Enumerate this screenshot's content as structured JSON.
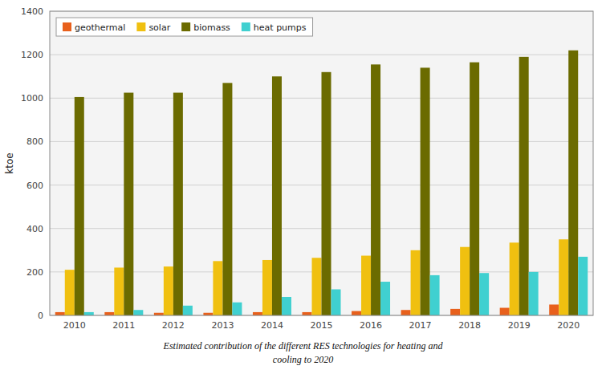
{
  "chart_data": {
    "type": "bar",
    "categories": [
      "2010",
      "2011",
      "2012",
      "2013",
      "2014",
      "2015",
      "2016",
      "2017",
      "2018",
      "2019",
      "2020"
    ],
    "series": [
      {
        "name": "geothermal",
        "color": "#e8601c",
        "values": [
          15,
          15,
          12,
          12,
          15,
          15,
          20,
          25,
          30,
          35,
          50
        ]
      },
      {
        "name": "solar",
        "color": "#f0c010",
        "values": [
          210,
          220,
          225,
          250,
          255,
          265,
          275,
          300,
          315,
          335,
          350
        ]
      },
      {
        "name": "biomass",
        "color": "#6b6b00",
        "values": [
          1005,
          1025,
          1025,
          1070,
          1100,
          1120,
          1155,
          1140,
          1165,
          1190,
          1220
        ]
      },
      {
        "name": "heat pumps",
        "color": "#40d0d0",
        "values": [
          15,
          25,
          45,
          60,
          85,
          120,
          155,
          185,
          195,
          200,
          270
        ]
      }
    ],
    "ylabel": "ktoe",
    "ylim": [
      0,
      1400
    ],
    "yticks": [
      0,
      200,
      400,
      600,
      800,
      1000,
      1200,
      1400
    ],
    "grid": true,
    "legend": "upper left",
    "annotations": [
      "Estimated contribution of the different RES technologies for heating and",
      "cooling to 2020"
    ]
  }
}
